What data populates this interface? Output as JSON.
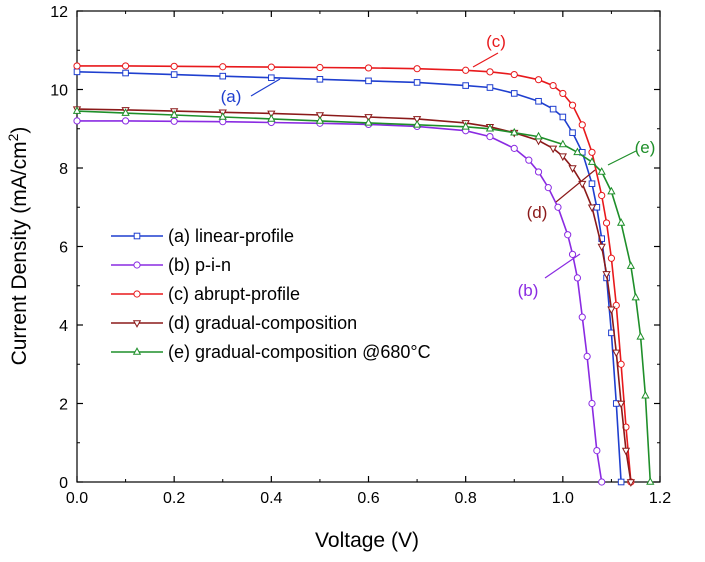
{
  "chart_data": {
    "type": "line",
    "xlabel": "Voltage (V)",
    "ylabel_main": "Current Density (mA/cm",
    "ylabel_sup": "2",
    "ylabel_close": ")",
    "xlim": [
      0.0,
      1.2
    ],
    "ylim": [
      0,
      12
    ],
    "xticks": [
      "0.0",
      "0.2",
      "0.4",
      "0.6",
      "0.8",
      "1.0",
      "1.2"
    ],
    "yticks": [
      "0",
      "2",
      "4",
      "6",
      "8",
      "10",
      "12"
    ],
    "grid": false,
    "legend_position": "center-left",
    "series": [
      {
        "key": "a",
        "name": "(a) linear-profile",
        "tag": "(a)",
        "color": "#1f3fcf",
        "marker": "square",
        "x": [
          0.0,
          0.1,
          0.2,
          0.3,
          0.4,
          0.5,
          0.6,
          0.7,
          0.8,
          0.85,
          0.9,
          0.95,
          0.98,
          1.0,
          1.02,
          1.04,
          1.06,
          1.07,
          1.08,
          1.09,
          1.1,
          1.11,
          1.12
        ],
        "y": [
          10.45,
          10.42,
          10.38,
          10.34,
          10.3,
          10.26,
          10.22,
          10.18,
          10.1,
          10.05,
          9.9,
          9.7,
          9.5,
          9.3,
          8.9,
          8.4,
          7.6,
          7.0,
          6.2,
          5.2,
          3.8,
          2.0,
          0.0
        ]
      },
      {
        "key": "b",
        "name": "(b) p-i-n",
        "tag": "(b)",
        "color": "#8a2be2",
        "marker": "circle",
        "x": [
          0.0,
          0.1,
          0.2,
          0.3,
          0.4,
          0.5,
          0.6,
          0.7,
          0.8,
          0.85,
          0.9,
          0.93,
          0.95,
          0.97,
          0.99,
          1.01,
          1.02,
          1.03,
          1.04,
          1.05,
          1.06,
          1.07,
          1.08
        ],
        "y": [
          9.2,
          9.2,
          9.19,
          9.18,
          9.16,
          9.14,
          9.11,
          9.06,
          8.95,
          8.8,
          8.5,
          8.2,
          7.9,
          7.5,
          7.0,
          6.3,
          5.8,
          5.2,
          4.2,
          3.2,
          2.0,
          0.8,
          0.0
        ]
      },
      {
        "key": "c",
        "name": "(c) abrupt-profile",
        "tag": "(c)",
        "color": "#e8191c",
        "marker": "circle",
        "x": [
          0.0,
          0.1,
          0.2,
          0.3,
          0.4,
          0.5,
          0.6,
          0.7,
          0.8,
          0.85,
          0.9,
          0.95,
          0.98,
          1.0,
          1.02,
          1.04,
          1.06,
          1.08,
          1.09,
          1.1,
          1.11,
          1.12,
          1.13,
          1.14
        ],
        "y": [
          10.6,
          10.6,
          10.59,
          10.58,
          10.57,
          10.56,
          10.55,
          10.53,
          10.49,
          10.45,
          10.38,
          10.25,
          10.1,
          9.9,
          9.6,
          9.1,
          8.4,
          7.3,
          6.6,
          5.7,
          4.5,
          3.0,
          1.4,
          0.0
        ]
      },
      {
        "key": "d",
        "name": "(d) gradual-composition",
        "tag": "(d)",
        "color": "#8b1a1a",
        "marker": "triangle-down",
        "x": [
          0.0,
          0.1,
          0.2,
          0.3,
          0.4,
          0.5,
          0.6,
          0.7,
          0.8,
          0.85,
          0.9,
          0.95,
          0.98,
          1.0,
          1.02,
          1.04,
          1.06,
          1.08,
          1.09,
          1.1,
          1.11,
          1.12,
          1.13,
          1.14
        ],
        "y": [
          9.5,
          9.48,
          9.45,
          9.42,
          9.39,
          9.35,
          9.3,
          9.25,
          9.15,
          9.05,
          8.9,
          8.7,
          8.5,
          8.3,
          8.0,
          7.6,
          7.0,
          6.0,
          5.3,
          4.4,
          3.3,
          2.0,
          0.8,
          0.0
        ]
      },
      {
        "key": "e",
        "name": "(e) gradual-composition @680°C",
        "tag": "(e)",
        "color": "#1f8f2a",
        "marker": "triangle-up",
        "x": [
          0.0,
          0.1,
          0.2,
          0.3,
          0.4,
          0.5,
          0.6,
          0.7,
          0.8,
          0.85,
          0.9,
          0.95,
          1.0,
          1.03,
          1.06,
          1.08,
          1.1,
          1.12,
          1.14,
          1.15,
          1.16,
          1.17,
          1.18
        ],
        "y": [
          9.45,
          9.4,
          9.35,
          9.3,
          9.25,
          9.2,
          9.15,
          9.1,
          9.05,
          9.0,
          8.9,
          8.8,
          8.6,
          8.4,
          8.15,
          7.9,
          7.4,
          6.6,
          5.5,
          4.7,
          3.7,
          2.2,
          0.0
        ]
      }
    ]
  }
}
